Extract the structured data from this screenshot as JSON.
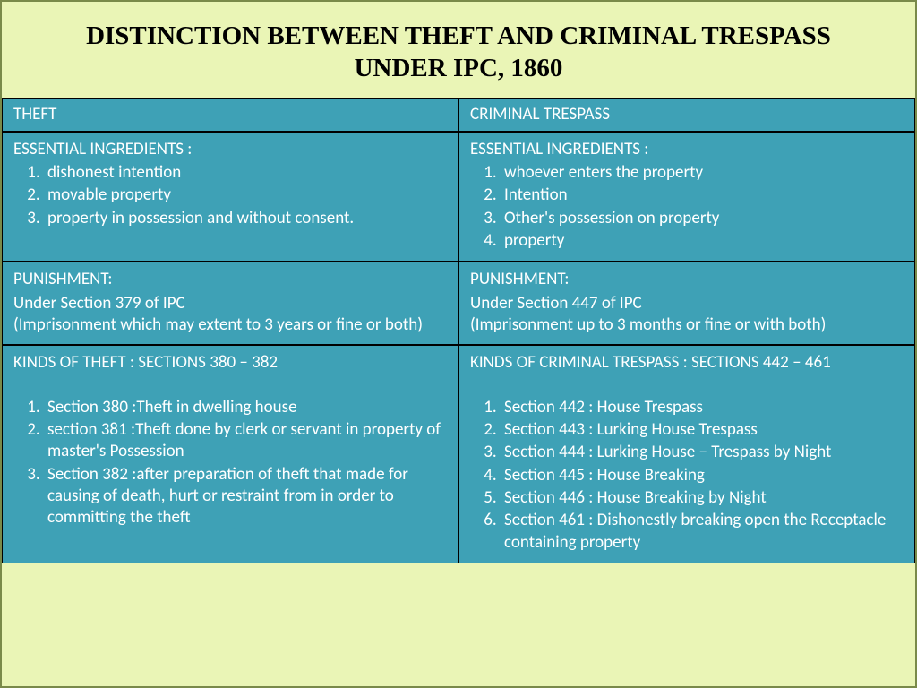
{
  "title": "DISTINCTION BETWEEN THEFT AND CRIMINAL TRESPASS UNDER IPC, 1860",
  "colors": {
    "page_bg": "#eaf5b6",
    "cell_bg": "#3ea1b6",
    "cell_border": "#000000",
    "text": "#ffffff",
    "title_text": "#000000"
  },
  "table": {
    "headers": {
      "left": "THEFT",
      "right": "CRIMINAL TRESPASS"
    },
    "essential": {
      "left": {
        "heading": "ESSENTIAL INGREDIENTS :",
        "items": [
          "dishonest intention",
          "movable property",
          "property in possession and without consent."
        ]
      },
      "right": {
        "heading": "ESSENTIAL INGREDIENTS :",
        "items": [
          "whoever enters the property",
          "Intention",
          "Other's possession on property",
          "property"
        ]
      }
    },
    "punishment": {
      "left": {
        "heading": "PUNISHMENT:",
        "text": "Under Section 379 of IPC\n(Imprisonment which may extent to 3 years or fine or both)"
      },
      "right": {
        "heading": "PUNISHMENT:",
        "text": "Under Section 447 of IPC\n(Imprisonment up to 3 months or fine or with both)"
      }
    },
    "kinds": {
      "left": {
        "heading": "KINDS OF THEFT : SECTIONS 380 – 382",
        "items": [
          "Section 380 :Theft in dwelling house",
          "section 381 :Theft done by clerk or servant in property of master's Possession",
          "Section 382 :after preparation of theft that made for causing of death, hurt or restraint from in order to committing the theft"
        ]
      },
      "right": {
        "heading": "KINDS OF CRIMINAL TRESPASS : SECTIONS 442 – 461",
        "items": [
          "Section 442 : House Trespass",
          "Section 443 : Lurking House Trespass",
          "Section 444 : Lurking House – Trespass by Night",
          "Section 445 : House Breaking",
          "Section 446 : House Breaking by Night",
          "Section 461 : Dishonestly breaking open the Receptacle containing property"
        ]
      }
    }
  }
}
